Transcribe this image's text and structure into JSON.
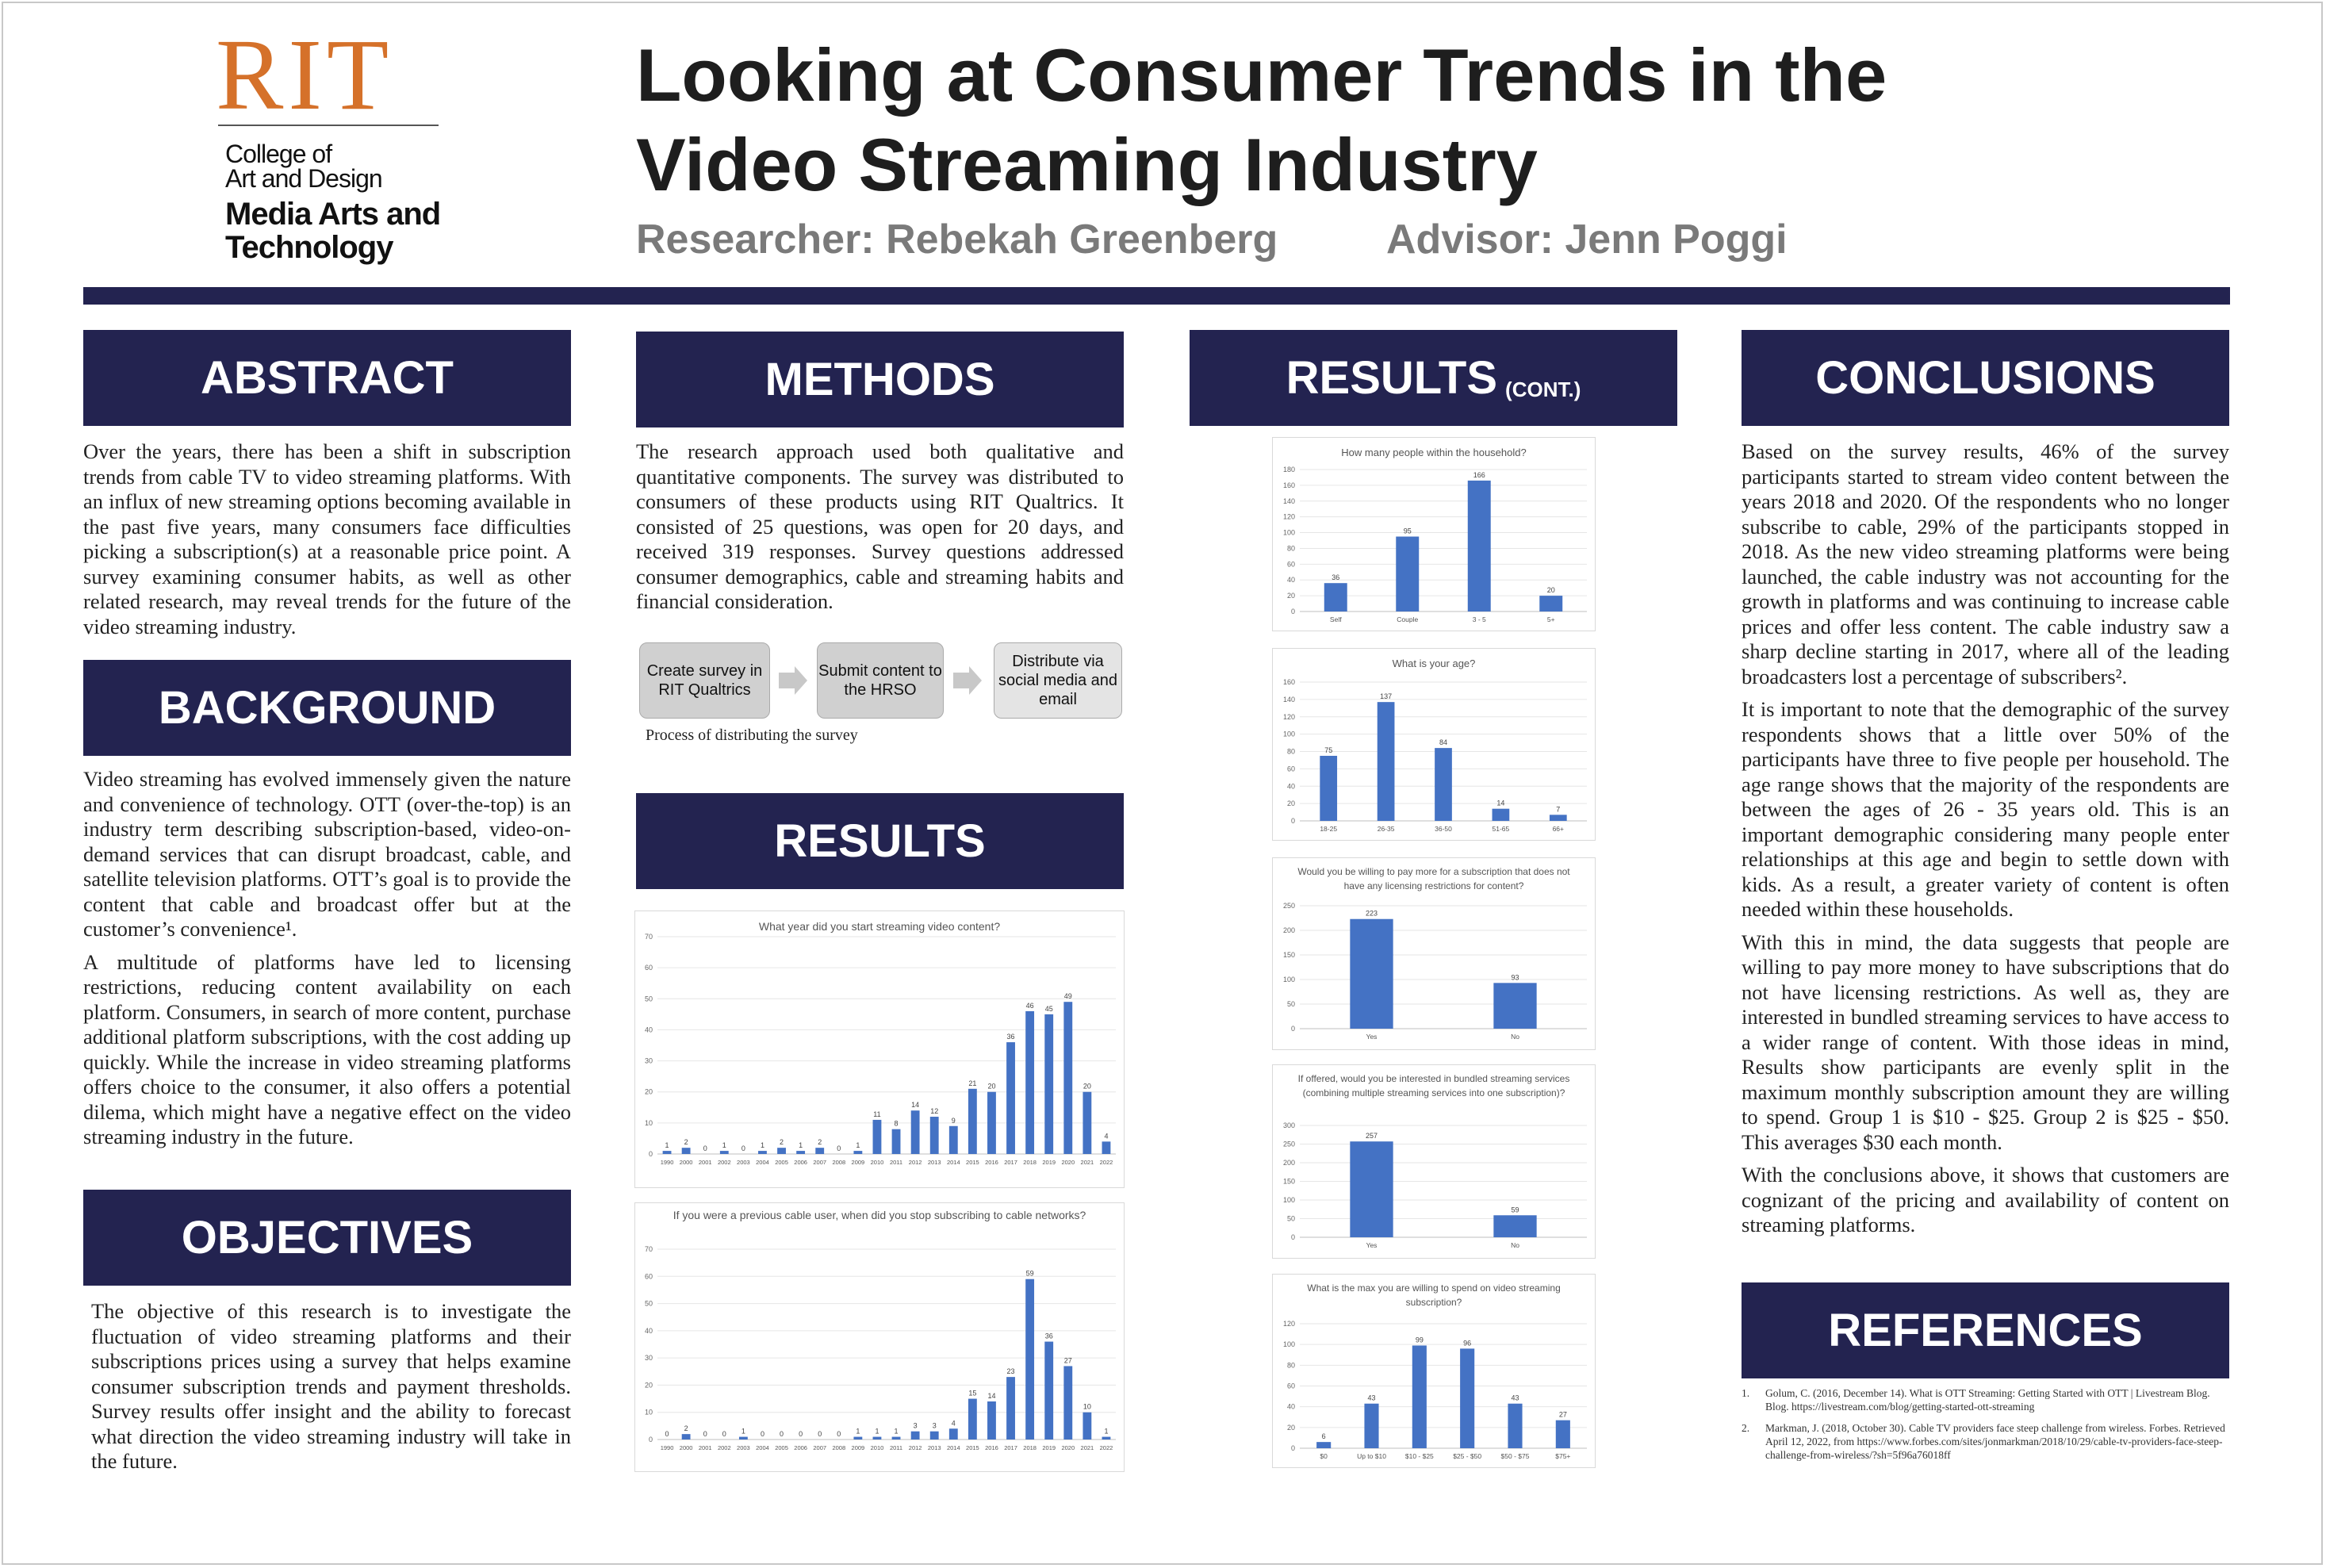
{
  "logo": {
    "rit": "RIT",
    "line1": "College of",
    "line2": "Art and Design",
    "line3": "Media Arts and",
    "line4": "Technology"
  },
  "header": {
    "title_line1": "Looking at Consumer Trends in the",
    "title_line2": "Video Streaming Industry",
    "researcher": "Researcher: Rebekah Greenberg",
    "advisor": "Advisor: Jenn Poggi"
  },
  "sections": {
    "abstract": "ABSTRACT",
    "background": "BACKGROUND",
    "objectives": "OBJECTIVES",
    "methods": "METHODS",
    "results": "RESULTS",
    "results_cont": "RESULTS",
    "results_cont_small": "(CONT.)",
    "conclusions": "CONCLUSIONS",
    "references": "REFERENCES"
  },
  "abstract_text": "Over the years, there has been a shift in subscription trends from cable  TV to video streaming platforms. With an influx of new streaming options becoming available in the past five years, many consumers face difficulties picking a subscription(s) at a reasonable price point. A survey examining consumer habits, as well as other related research, may reveal trends for the future of the video streaming industry.",
  "background_p1": "Video streaming has evolved immensely given the nature and convenience of technology. OTT (over-the-top) is an industry term describing subscription-based, video-on-demand services that can disrupt broadcast, cable, and satellite television platforms. OTT’s goal is to provide the content that cable and broadcast offer but at the customer’s convenience¹.",
  "background_p2": "A multitude of platforms have led to licensing restrictions, reducing content availability on each platform. Consumers, in search of more content, purchase additional platform subscriptions, with the cost adding up quickly. While the increase in video streaming platforms offers choice to the consumer, it also offers a potential dilema, which might have a negative effect on the video streaming industry in the future.",
  "objectives_text": "The objective of this research is to investigate the fluctuation of video streaming platforms and their subscriptions prices using a survey that helps examine consumer subscription trends and payment thresholds. Survey results offer insight and the ability to forecast what direction the video streaming industry will take in the future.",
  "methods_text": "The research approach used both qualitative and quantitative components. The survey was distributed to consumers of these products using RIT Qualtrics. It consisted of 25 questions, was open for 20 days, and received 319 responses. Survey questions addressed consumer demographics, cable and streaming habits and financial consideration.",
  "process": {
    "step1": "Create survey in RIT Qualtrics",
    "step2": "Submit content to the HRSO",
    "step3": "Distribute via social media and email",
    "caption": "Process of distributing the survey"
  },
  "conclusions_p1": "Based on the survey results, 46% of the survey participants started to stream video content between the years 2018 and 2020. Of the respondents who no longer subscribe to cable, 29% of the participants stopped in 2018. As the new video streaming platforms were being launched, the cable industry was not accounting for the growth in platforms and was continuing to increase cable prices and offer less content. The cable industry saw a sharp decline starting in 2017, where all of the leading broadcasters lost a percentage of subscribers².",
  "conclusions_p2": "It is important to note that the demographic of the survey respondents shows that a little over 50% of the participants have three to five people per household. The age range shows that the majority of the respondents are between the ages of 26 - 35 years old.  This is an important demographic considering many people enter  relationships at this age and begin to settle down with kids. As a result, a greater variety of content is often needed within these households.",
  "conclusions_p3": "With this in mind, the data suggests that people are willing to pay more money to have subscriptions that do not have licensing restrictions. As well as, they are interested in bundled streaming services to have access to a wider range of content. With those ideas in mind, Results show participants are evenly split in the maximum monthly subscription amount they are willing to spend. Group 1 is $10 - $25. Group 2 is $25 - $50. This averages $30 each month.",
  "conclusions_p4": "With the conclusions above, it shows that customers are cognizant of the pricing and availability of content on streaming platforms.",
  "references": [
    {
      "num": "1.",
      "text": "Golum, C. (2016, December 14). What is OTT Streaming: Getting Started with OTT | Livestream Blog. Blog. https://livestream.com/blog/getting-started-ott-streaming"
    },
    {
      "num": "2.",
      "text": "Markman, J. (2018, October 30). Cable TV providers face steep challenge from wireless. Forbes. Retrieved April 12, 2022, from https://www.forbes.com/sites/jonmarkman/2018/10/29/cable-tv-providers-face-steep-challenge-from-wireless/?sh=5f96a76018ff"
    }
  ],
  "chart_data": [
    {
      "type": "bar",
      "title": "What year did you start streaming video content?",
      "categories": [
        "1990",
        "2000",
        "2001",
        "2002",
        "2003",
        "2004",
        "2005",
        "2006",
        "2007",
        "2008",
        "2009",
        "2010",
        "2011",
        "2012",
        "2013",
        "2014",
        "2015",
        "2016",
        "2017",
        "2018",
        "2019",
        "2020",
        "2021",
        "2022"
      ],
      "values": [
        1,
        2,
        0,
        1,
        0,
        1,
        2,
        1,
        2,
        0,
        1,
        11,
        8,
        14,
        12,
        9,
        21,
        20,
        36,
        46,
        45,
        49,
        20,
        4
      ],
      "ylim": [
        0,
        70
      ],
      "yticks": [
        0,
        10,
        20,
        30,
        40,
        50,
        60,
        70
      ],
      "grid": true,
      "color": "#4472c4"
    },
    {
      "type": "bar",
      "title": "If you were a previous cable user, when did you stop subscribing to cable networks?",
      "categories": [
        "1990",
        "2000",
        "2001",
        "2002",
        "2003",
        "2004",
        "2005",
        "2006",
        "2007",
        "2008",
        "2009",
        "2010",
        "2011",
        "2012",
        "2013",
        "2014",
        "2015",
        "2016",
        "2017",
        "2018",
        "2019",
        "2020",
        "2021",
        "2022"
      ],
      "values": [
        0,
        2,
        0,
        0,
        1,
        0,
        0,
        0,
        0,
        0,
        1,
        1,
        1,
        3,
        3,
        4,
        15,
        14,
        23,
        59,
        36,
        27,
        10,
        1
      ],
      "ylim": [
        0,
        70
      ],
      "yticks": [
        0,
        10,
        20,
        30,
        40,
        50,
        60,
        70
      ],
      "grid": true,
      "color": "#4472c4"
    },
    {
      "type": "bar",
      "title": "How many people within the household?",
      "categories": [
        "Self",
        "Couple",
        "3 - 5",
        "5+"
      ],
      "values": [
        36,
        95,
        166,
        20
      ],
      "ylim": [
        0,
        180
      ],
      "yticks": [
        0,
        20,
        40,
        60,
        80,
        100,
        120,
        140,
        160,
        180
      ],
      "grid": true,
      "color": "#4472c4"
    },
    {
      "type": "bar",
      "title": "What is your age?",
      "categories": [
        "18-25",
        "26-35",
        "36-50",
        "51-65",
        "66+"
      ],
      "values": [
        75,
        137,
        84,
        14,
        7
      ],
      "ylim": [
        0,
        160
      ],
      "yticks": [
        0,
        20,
        40,
        60,
        80,
        100,
        120,
        140,
        160
      ],
      "grid": true,
      "color": "#4472c4"
    },
    {
      "type": "bar",
      "title": "Would you be willing to pay more for a subscription that does not have any licensing restrictions for content?",
      "categories": [
        "Yes",
        "No"
      ],
      "values": [
        223,
        93
      ],
      "ylim": [
        0,
        250
      ],
      "yticks": [
        0,
        50,
        100,
        150,
        200,
        250
      ],
      "grid": true,
      "color": "#4472c4"
    },
    {
      "type": "bar",
      "title": "If offered, would you be interested in bundled streaming services (combining multiple streaming services into one subscription)?",
      "categories": [
        "Yes",
        "No"
      ],
      "values": [
        257,
        59
      ],
      "ylim": [
        0,
        300
      ],
      "yticks": [
        0,
        50,
        100,
        150,
        200,
        250,
        300
      ],
      "grid": true,
      "color": "#4472c4"
    },
    {
      "type": "bar",
      "title": "What is the max you are willing to spend on video streaming subscription?",
      "categories": [
        "$0",
        "Up to $10",
        "$10 - $25",
        "$25 - $50",
        "$50 - $75",
        "$75+"
      ],
      "values": [
        6,
        43,
        99,
        96,
        43,
        27
      ],
      "ylim": [
        0,
        120
      ],
      "yticks": [
        0,
        20,
        40,
        60,
        80,
        100,
        120
      ],
      "grid": true,
      "color": "#4472c4"
    }
  ]
}
